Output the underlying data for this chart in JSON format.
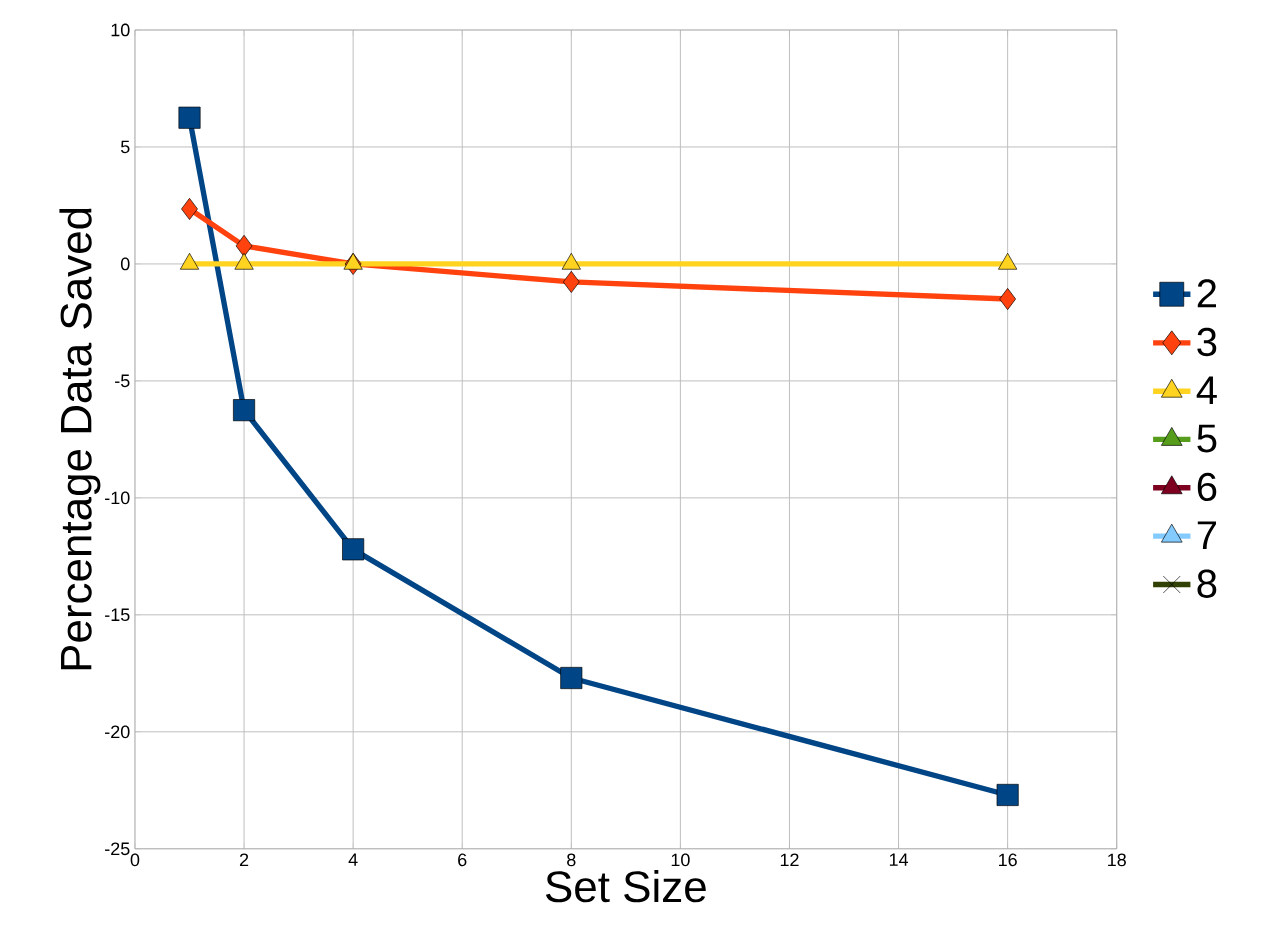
{
  "chart_data": {
    "type": "line",
    "xlabel": "Set Size",
    "ylabel": "Percentage Data Saved",
    "x": [
      1,
      2,
      4,
      8,
      16
    ],
    "series": [
      {
        "name": "2",
        "color": "#004586",
        "marker": "square",
        "values": [
          6.25,
          -6.25,
          -12.2,
          -17.7,
          -22.7
        ]
      },
      {
        "name": "3",
        "color": "#ff420e",
        "marker": "diamond",
        "values": [
          2.35,
          0.77,
          0,
          -0.77,
          -1.5
        ]
      },
      {
        "name": "4",
        "color": "#ffd320",
        "marker": "triangle",
        "values": [
          0,
          0,
          0,
          0,
          0
        ]
      },
      {
        "name": "5",
        "color": "#579d1c",
        "marker": "triangle",
        "values": [
          null,
          null,
          null,
          null,
          null
        ]
      },
      {
        "name": "6",
        "color": "#7e0021",
        "marker": "triangle",
        "values": [
          null,
          null,
          null,
          null,
          null
        ]
      },
      {
        "name": "7",
        "color": "#83caff",
        "marker": "triangle",
        "values": [
          null,
          null,
          null,
          null,
          null
        ]
      },
      {
        "name": "8",
        "color": "#314004",
        "marker": "cross",
        "values": [
          null,
          null,
          null,
          null,
          null
        ]
      }
    ],
    "xlim": [
      0,
      18
    ],
    "xticks": [
      0,
      2,
      4,
      6,
      8,
      10,
      12,
      14,
      16,
      18
    ],
    "ylim": [
      -25,
      10
    ],
    "yticks": [
      -25,
      -20,
      -15,
      -10,
      -5,
      0,
      5,
      10
    ],
    "grid": true,
    "legend": "right",
    "line_style": "solid"
  }
}
